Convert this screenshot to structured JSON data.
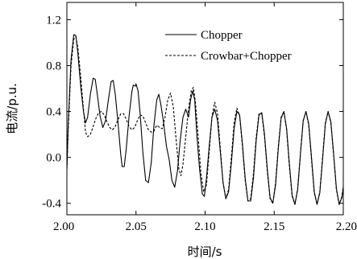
{
  "chart_data": {
    "type": "line",
    "xlabel": "时间/s",
    "ylabel": "电流/p.u.",
    "xlim": [
      2.0,
      2.2
    ],
    "ylim": [
      -0.5,
      1.35
    ],
    "x_ticks": [
      2.0,
      2.05,
      2.1,
      2.15,
      2.2
    ],
    "x_tick_labels": [
      "2.00",
      "2.05",
      "2.10",
      "2.15",
      "2.20"
    ],
    "y_ticks": [
      -0.4,
      0.0,
      0.4,
      0.8,
      1.2
    ],
    "y_tick_labels": [
      "-0.4",
      "0.0",
      "0.4",
      "0.8",
      "1.2"
    ],
    "grid": false,
    "legend_position": "top-right",
    "series": [
      {
        "name": "Chopper",
        "line_style": "solid",
        "color": "#000000",
        "points": [
          [
            2.0,
            -0.1
          ],
          [
            2.001,
            0.3
          ],
          [
            2.003,
            0.85
          ],
          [
            2.005,
            1.07
          ],
          [
            2.0065,
            1.06
          ],
          [
            2.008,
            0.9
          ],
          [
            2.01,
            0.62
          ],
          [
            2.012,
            0.4
          ],
          [
            2.0135,
            0.3
          ],
          [
            2.015,
            0.35
          ],
          [
            2.017,
            0.55
          ],
          [
            2.019,
            0.69
          ],
          [
            2.0205,
            0.68
          ],
          [
            2.022,
            0.55
          ],
          [
            2.024,
            0.36
          ],
          [
            2.026,
            0.26
          ],
          [
            2.028,
            0.32
          ],
          [
            2.03,
            0.5
          ],
          [
            2.032,
            0.66
          ],
          [
            2.0335,
            0.67
          ],
          [
            2.035,
            0.55
          ],
          [
            2.037,
            0.3
          ],
          [
            2.039,
            0.02
          ],
          [
            2.04,
            -0.08
          ],
          [
            2.0415,
            -0.08
          ],
          [
            2.043,
            0.08
          ],
          [
            2.045,
            0.36
          ],
          [
            2.047,
            0.57
          ],
          [
            2.048,
            0.63
          ],
          [
            2.0495,
            0.62
          ],
          [
            2.05,
            0.64
          ],
          [
            2.0515,
            0.58
          ],
          [
            2.053,
            0.38
          ],
          [
            2.055,
            0.04
          ],
          [
            2.057,
            -0.2
          ],
          [
            2.059,
            -0.22
          ],
          [
            2.061,
            -0.05
          ],
          [
            2.063,
            0.28
          ],
          [
            2.065,
            0.5
          ],
          [
            2.0665,
            0.55
          ],
          [
            2.068,
            0.46
          ],
          [
            2.07,
            0.3
          ],
          [
            2.072,
            0.1
          ],
          [
            2.074,
            -0.02
          ],
          [
            2.076,
            -0.2
          ],
          [
            2.078,
            -0.26
          ],
          [
            2.08,
            -0.12
          ],
          [
            2.082,
            0.15
          ],
          [
            2.084,
            0.35
          ],
          [
            2.086,
            0.42
          ],
          [
            2.088,
            0.35
          ],
          [
            2.0895,
            0.5
          ],
          [
            2.091,
            0.58
          ],
          [
            2.0925,
            0.5
          ],
          [
            2.094,
            0.2
          ],
          [
            2.096,
            -0.1
          ],
          [
            2.098,
            -0.32
          ],
          [
            2.0995,
            -0.34
          ],
          [
            2.101,
            -0.18
          ],
          [
            2.103,
            0.1
          ],
          [
            2.105,
            0.35
          ],
          [
            2.107,
            0.42
          ],
          [
            2.109,
            0.32
          ],
          [
            2.111,
            0.05
          ],
          [
            2.113,
            -0.22
          ],
          [
            2.115,
            -0.36
          ],
          [
            2.117,
            -0.3
          ],
          [
            2.119,
            -0.05
          ],
          [
            2.121,
            0.25
          ],
          [
            2.123,
            0.4
          ],
          [
            2.125,
            0.37
          ],
          [
            2.127,
            0.12
          ],
          [
            2.129,
            -0.18
          ],
          [
            2.131,
            -0.38
          ],
          [
            2.133,
            -0.38
          ],
          [
            2.135,
            -0.18
          ],
          [
            2.137,
            0.15
          ],
          [
            2.139,
            0.37
          ],
          [
            2.141,
            0.39
          ],
          [
            2.143,
            0.2
          ],
          [
            2.145,
            -0.1
          ],
          [
            2.147,
            -0.35
          ],
          [
            2.149,
            -0.4
          ],
          [
            2.151,
            -0.24
          ],
          [
            2.153,
            0.08
          ],
          [
            2.155,
            0.34
          ],
          [
            2.157,
            0.4
          ],
          [
            2.159,
            0.25
          ],
          [
            2.161,
            -0.06
          ],
          [
            2.163,
            -0.33
          ],
          [
            2.165,
            -0.41
          ],
          [
            2.167,
            -0.28
          ],
          [
            2.169,
            0.03
          ],
          [
            2.171,
            0.32
          ],
          [
            2.173,
            0.4
          ],
          [
            2.175,
            0.29
          ],
          [
            2.177,
            0.0
          ],
          [
            2.179,
            -0.3
          ],
          [
            2.181,
            -0.41
          ],
          [
            2.183,
            -0.31
          ],
          [
            2.185,
            -0.02
          ],
          [
            2.187,
            0.29
          ],
          [
            2.189,
            0.4
          ],
          [
            2.191,
            0.31
          ],
          [
            2.193,
            0.03
          ],
          [
            2.195,
            -0.27
          ],
          [
            2.197,
            -0.41
          ],
          [
            2.199,
            -0.35
          ],
          [
            2.2,
            -0.26
          ]
        ]
      },
      {
        "name": "Crowbar+Chopper",
        "line_style": "dashed",
        "color": "#000000",
        "points": [
          [
            2.0,
            -0.1
          ],
          [
            2.001,
            0.25
          ],
          [
            2.003,
            0.8
          ],
          [
            2.005,
            1.03
          ],
          [
            2.0065,
            1.05
          ],
          [
            2.008,
            0.95
          ],
          [
            2.01,
            0.7
          ],
          [
            2.012,
            0.42
          ],
          [
            2.0135,
            0.22
          ],
          [
            2.015,
            0.18
          ],
          [
            2.017,
            0.2
          ],
          [
            2.019,
            0.27
          ],
          [
            2.021,
            0.34
          ],
          [
            2.023,
            0.39
          ],
          [
            2.025,
            0.4
          ],
          [
            2.027,
            0.37
          ],
          [
            2.029,
            0.31
          ],
          [
            2.031,
            0.26
          ],
          [
            2.033,
            0.24
          ],
          [
            2.035,
            0.27
          ],
          [
            2.037,
            0.33
          ],
          [
            2.039,
            0.38
          ],
          [
            2.041,
            0.38
          ],
          [
            2.043,
            0.33
          ],
          [
            2.045,
            0.27
          ],
          [
            2.047,
            0.24
          ],
          [
            2.049,
            0.26
          ],
          [
            2.051,
            0.32
          ],
          [
            2.053,
            0.37
          ],
          [
            2.055,
            0.36
          ],
          [
            2.057,
            0.3
          ],
          [
            2.059,
            0.24
          ],
          [
            2.061,
            0.22
          ],
          [
            2.063,
            0.23
          ],
          [
            2.065,
            0.28
          ],
          [
            2.067,
            0.26
          ],
          [
            2.069,
            0.25
          ],
          [
            2.071,
            0.35
          ],
          [
            2.073,
            0.5
          ],
          [
            2.075,
            0.56
          ],
          [
            2.077,
            0.44
          ],
          [
            2.079,
            0.16
          ],
          [
            2.081,
            -0.1
          ],
          [
            2.0825,
            -0.16
          ],
          [
            2.084,
            -0.06
          ],
          [
            2.086,
            0.18
          ],
          [
            2.088,
            0.42
          ],
          [
            2.09,
            0.58
          ],
          [
            2.0915,
            0.61
          ],
          [
            2.093,
            0.48
          ],
          [
            2.095,
            0.18
          ],
          [
            2.097,
            -0.14
          ],
          [
            2.099,
            -0.3
          ],
          [
            2.101,
            -0.24
          ],
          [
            2.103,
            0.05
          ],
          [
            2.105,
            0.36
          ],
          [
            2.107,
            0.48
          ],
          [
            2.109,
            0.38
          ],
          [
            2.111,
            0.08
          ],
          [
            2.113,
            -0.22
          ],
          [
            2.115,
            -0.36
          ],
          [
            2.117,
            -0.28
          ],
          [
            2.119,
            0.0
          ],
          [
            2.121,
            0.3
          ],
          [
            2.123,
            0.43
          ],
          [
            2.125,
            0.36
          ],
          [
            2.127,
            0.1
          ],
          [
            2.129,
            -0.2
          ],
          [
            2.131,
            -0.38
          ],
          [
            2.133,
            -0.36
          ],
          [
            2.135,
            -0.14
          ],
          [
            2.137,
            0.18
          ],
          [
            2.139,
            0.38
          ],
          [
            2.141,
            0.38
          ],
          [
            2.143,
            0.18
          ],
          [
            2.145,
            -0.12
          ],
          [
            2.147,
            -0.36
          ],
          [
            2.149,
            -0.4
          ],
          [
            2.151,
            -0.22
          ],
          [
            2.153,
            0.1
          ],
          [
            2.155,
            0.35
          ],
          [
            2.157,
            0.4
          ],
          [
            2.159,
            0.24
          ],
          [
            2.161,
            -0.08
          ],
          [
            2.163,
            -0.34
          ],
          [
            2.165,
            -0.41
          ],
          [
            2.167,
            -0.27
          ],
          [
            2.169,
            0.04
          ],
          [
            2.171,
            0.32
          ],
          [
            2.173,
            0.4
          ],
          [
            2.175,
            0.28
          ],
          [
            2.177,
            -0.02
          ],
          [
            2.179,
            -0.31
          ],
          [
            2.181,
            -0.41
          ],
          [
            2.183,
            -0.3
          ],
          [
            2.185,
            0.0
          ],
          [
            2.187,
            0.3
          ],
          [
            2.189,
            0.4
          ],
          [
            2.191,
            0.3
          ],
          [
            2.193,
            0.02
          ],
          [
            2.195,
            -0.28
          ],
          [
            2.197,
            -0.41
          ],
          [
            2.199,
            -0.34
          ],
          [
            2.2,
            -0.25
          ]
        ]
      }
    ]
  }
}
